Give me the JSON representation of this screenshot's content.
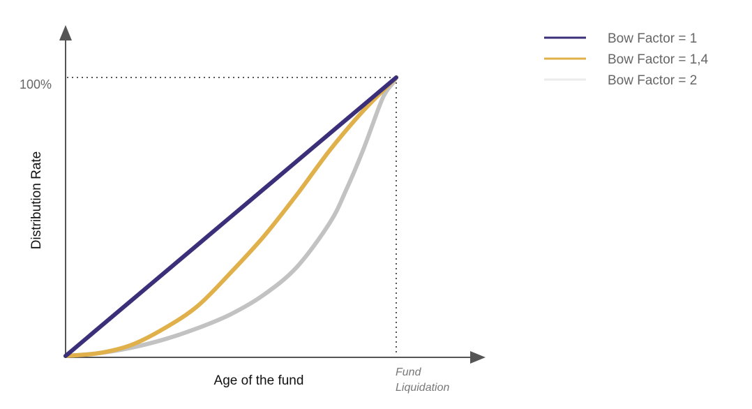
{
  "chart_data": {
    "type": "line",
    "title": "",
    "xlabel": "Age of the fund",
    "ylabel": "Distribution Rate",
    "xlim": [
      0,
      1
    ],
    "ylim": [
      0,
      1
    ],
    "y_tick_labels": [
      "100%"
    ],
    "annotation": {
      "line1": "Fund",
      "line2": "Liquidation"
    },
    "grid": false,
    "legend_position": "top-right",
    "series": [
      {
        "name": "Bow Factor = 1",
        "color": "#3b2f7a",
        "x": [
          0,
          0.1,
          0.2,
          0.3,
          0.4,
          0.5,
          0.6,
          0.7,
          0.8,
          0.9,
          1.0
        ],
        "y": [
          0,
          0.1,
          0.2,
          0.3,
          0.4,
          0.5,
          0.6,
          0.7,
          0.8,
          0.9,
          1.0
        ]
      },
      {
        "name": "Bow Factor = 1,4",
        "color": "#e0b04a",
        "x": [
          0,
          0.1,
          0.2,
          0.3,
          0.4,
          0.5,
          0.6,
          0.7,
          0.8,
          0.9,
          1.0
        ],
        "y": [
          0,
          0.01,
          0.04,
          0.1,
          0.18,
          0.3,
          0.43,
          0.58,
          0.74,
          0.88,
          1.0
        ]
      },
      {
        "name": "Bow Factor = 2",
        "color": "#c2c2c2",
        "x": [
          0,
          0.1,
          0.2,
          0.3,
          0.4,
          0.5,
          0.6,
          0.7,
          0.8,
          0.85,
          0.9,
          0.95,
          0.97,
          0.99,
          1.0
        ],
        "y": [
          0,
          0.01,
          0.03,
          0.06,
          0.1,
          0.15,
          0.22,
          0.32,
          0.48,
          0.6,
          0.74,
          0.9,
          0.95,
          0.98,
          1.0
        ]
      }
    ]
  }
}
